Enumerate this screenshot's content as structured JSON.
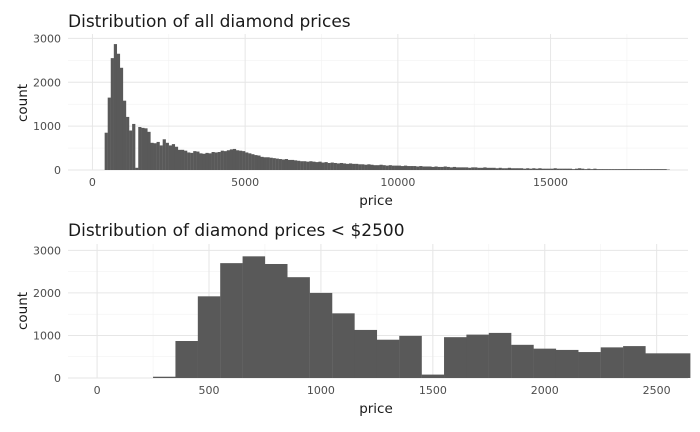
{
  "chart_data": [
    {
      "type": "bar",
      "title": "Distribution of all diamond prices",
      "xlabel": "price",
      "ylabel": "count",
      "xlim": [
        -800,
        19500
      ],
      "ylim": [
        0,
        3100
      ],
      "xticks": [
        0,
        5000,
        10000,
        15000
      ],
      "xtick_labels": [
        "0",
        "5000",
        "10000",
        "15000"
      ],
      "yticks": [
        0,
        1000,
        2000,
        3000
      ],
      "ytick_labels": [
        "0",
        "1000",
        "2000",
        "3000"
      ],
      "grid": true,
      "bar_color": "#595959",
      "bin_width": 100,
      "bins": [
        [
          300,
          0
        ],
        [
          400,
          850
        ],
        [
          500,
          1650
        ],
        [
          600,
          2550
        ],
        [
          700,
          2870
        ],
        [
          800,
          2650
        ],
        [
          900,
          2330
        ],
        [
          1000,
          1580
        ],
        [
          1100,
          1210
        ],
        [
          1200,
          900
        ],
        [
          1300,
          1050
        ],
        [
          1400,
          50
        ],
        [
          1500,
          980
        ],
        [
          1600,
          960
        ],
        [
          1700,
          950
        ],
        [
          1800,
          870
        ],
        [
          1900,
          620
        ],
        [
          2000,
          610
        ],
        [
          2100,
          640
        ],
        [
          2200,
          560
        ],
        [
          2300,
          700
        ],
        [
          2400,
          620
        ],
        [
          2500,
          560
        ],
        [
          2600,
          590
        ],
        [
          2700,
          530
        ],
        [
          2800,
          460
        ],
        [
          2900,
          460
        ],
        [
          3000,
          440
        ],
        [
          3100,
          400
        ],
        [
          3200,
          390
        ],
        [
          3300,
          430
        ],
        [
          3400,
          420
        ],
        [
          3500,
          380
        ],
        [
          3600,
          370
        ],
        [
          3700,
          390
        ],
        [
          3800,
          380
        ],
        [
          3900,
          410
        ],
        [
          4000,
          400
        ],
        [
          4100,
          410
        ],
        [
          4200,
          440
        ],
        [
          4300,
          430
        ],
        [
          4400,
          450
        ],
        [
          4500,
          470
        ],
        [
          4600,
          480
        ],
        [
          4700,
          450
        ],
        [
          4800,
          440
        ],
        [
          4900,
          430
        ],
        [
          5000,
          400
        ],
        [
          5100,
          380
        ],
        [
          5200,
          360
        ],
        [
          5300,
          340
        ],
        [
          5400,
          330
        ],
        [
          5500,
          300
        ],
        [
          5600,
          290
        ],
        [
          5700,
          290
        ],
        [
          5800,
          280
        ],
        [
          5900,
          270
        ],
        [
          6000,
          260
        ],
        [
          6100,
          250
        ],
        [
          6200,
          240
        ],
        [
          6300,
          250
        ],
        [
          6400,
          230
        ],
        [
          6500,
          230
        ],
        [
          6600,
          220
        ],
        [
          6700,
          210
        ],
        [
          6800,
          200
        ],
        [
          6900,
          200
        ],
        [
          7000,
          190
        ],
        [
          7100,
          200
        ],
        [
          7200,
          190
        ],
        [
          7300,
          180
        ],
        [
          7400,
          190
        ],
        [
          7500,
          170
        ],
        [
          7600,
          180
        ],
        [
          7700,
          160
        ],
        [
          7800,
          170
        ],
        [
          7900,
          160
        ],
        [
          8000,
          150
        ],
        [
          8100,
          160
        ],
        [
          8200,
          150
        ],
        [
          8300,
          140
        ],
        [
          8400,
          150
        ],
        [
          8500,
          140
        ],
        [
          8600,
          140
        ],
        [
          8700,
          130
        ],
        [
          8800,
          130
        ],
        [
          8900,
          120
        ],
        [
          9000,
          130
        ],
        [
          9100,
          120
        ],
        [
          9200,
          110
        ],
        [
          9300,
          110
        ],
        [
          9400,
          120
        ],
        [
          9500,
          110
        ],
        [
          9600,
          100
        ],
        [
          9700,
          110
        ],
        [
          9800,
          100
        ],
        [
          9900,
          100
        ],
        [
          10000,
          100
        ],
        [
          10100,
          90
        ],
        [
          10200,
          100
        ],
        [
          10300,
          90
        ],
        [
          10400,
          90
        ],
        [
          10500,
          90
        ],
        [
          10600,
          80
        ],
        [
          10700,
          90
        ],
        [
          10800,
          80
        ],
        [
          10900,
          80
        ],
        [
          11000,
          80
        ],
        [
          11100,
          70
        ],
        [
          11200,
          80
        ],
        [
          11300,
          70
        ],
        [
          11400,
          70
        ],
        [
          11500,
          80
        ],
        [
          11600,
          70
        ],
        [
          11700,
          60
        ],
        [
          11800,
          70
        ],
        [
          11900,
          60
        ],
        [
          12000,
          60
        ],
        [
          12100,
          60
        ],
        [
          12200,
          60
        ],
        [
          12300,
          50
        ],
        [
          12400,
          60
        ],
        [
          12500,
          60
        ],
        [
          12600,
          50
        ],
        [
          12700,
          50
        ],
        [
          12800,
          60
        ],
        [
          12900,
          50
        ],
        [
          13000,
          50
        ],
        [
          13100,
          50
        ],
        [
          13200,
          40
        ],
        [
          13300,
          50
        ],
        [
          13400,
          40
        ],
        [
          13500,
          40
        ],
        [
          13600,
          50
        ],
        [
          13700,
          40
        ],
        [
          13800,
          40
        ],
        [
          13900,
          40
        ],
        [
          14000,
          40
        ],
        [
          14100,
          30
        ],
        [
          14200,
          40
        ],
        [
          14300,
          30
        ],
        [
          14400,
          40
        ],
        [
          14500,
          30
        ],
        [
          14600,
          40
        ],
        [
          14700,
          30
        ],
        [
          14800,
          30
        ],
        [
          14900,
          30
        ],
        [
          15000,
          30
        ],
        [
          15100,
          40
        ],
        [
          15200,
          30
        ],
        [
          15300,
          30
        ],
        [
          15400,
          30
        ],
        [
          15500,
          30
        ],
        [
          15600,
          30
        ],
        [
          15700,
          20
        ],
        [
          15800,
          30
        ],
        [
          15900,
          40
        ],
        [
          16000,
          30
        ],
        [
          16100,
          20
        ],
        [
          16200,
          30
        ],
        [
          16300,
          20
        ],
        [
          16400,
          30
        ],
        [
          16500,
          20
        ],
        [
          16600,
          20
        ],
        [
          16700,
          20
        ],
        [
          16800,
          20
        ],
        [
          16900,
          20
        ],
        [
          17000,
          20
        ],
        [
          17100,
          20
        ],
        [
          17200,
          20
        ],
        [
          17300,
          20
        ],
        [
          17400,
          20
        ],
        [
          17500,
          20
        ],
        [
          17600,
          20
        ],
        [
          17700,
          20
        ],
        [
          17800,
          20
        ],
        [
          17900,
          20
        ],
        [
          18000,
          20
        ],
        [
          18100,
          20
        ],
        [
          18200,
          20
        ],
        [
          18300,
          20
        ],
        [
          18400,
          20
        ],
        [
          18500,
          20
        ],
        [
          18600,
          20
        ],
        [
          18700,
          20
        ],
        [
          18800,
          10
        ]
      ]
    },
    {
      "type": "bar",
      "title": "Distribution of diamond prices < $2500",
      "xlabel": "price",
      "ylabel": "count",
      "xlim": [
        -130,
        2640
      ],
      "ylim": [
        0,
        3150
      ],
      "xticks": [
        0,
        500,
        1000,
        1500,
        2000,
        2500
      ],
      "xtick_labels": [
        "0",
        "500",
        "1000",
        "1500",
        "2000",
        "2500"
      ],
      "yticks": [
        0,
        1000,
        2000,
        3000
      ],
      "ytick_labels": [
        "0",
        "1000",
        "2000",
        "3000"
      ],
      "grid": true,
      "bar_color": "#595959",
      "bin_width": 100,
      "bins": [
        [
          250,
          30
        ],
        [
          350,
          870
        ],
        [
          450,
          1920
        ],
        [
          550,
          2700
        ],
        [
          650,
          2860
        ],
        [
          750,
          2680
        ],
        [
          850,
          2370
        ],
        [
          950,
          2000
        ],
        [
          1050,
          1520
        ],
        [
          1150,
          1130
        ],
        [
          1250,
          900
        ],
        [
          1350,
          990
        ],
        [
          1450,
          80
        ],
        [
          1550,
          960
        ],
        [
          1650,
          1020
        ],
        [
          1750,
          1060
        ],
        [
          1850,
          780
        ],
        [
          1950,
          690
        ],
        [
          2050,
          660
        ],
        [
          2150,
          610
        ],
        [
          2250,
          720
        ],
        [
          2350,
          750
        ],
        [
          2450,
          580
        ],
        [
          2550,
          580
        ]
      ]
    }
  ]
}
